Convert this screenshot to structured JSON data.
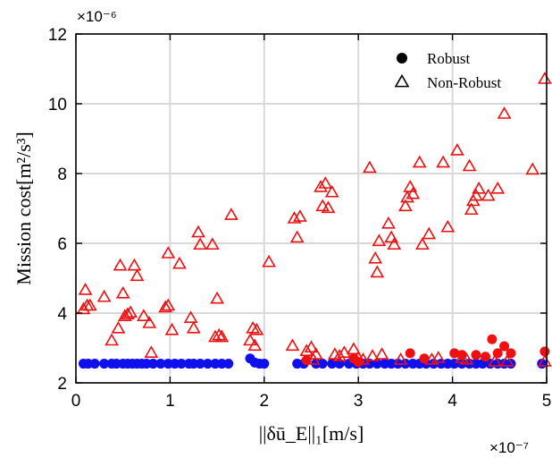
{
  "chart_data": {
    "type": "scatter",
    "xlabel": "||δū_E||₁[m/s]",
    "ylabel": "Mission cost[m²/s³]",
    "x_multiplier": "×10⁻⁷",
    "y_multiplier": "×10⁻⁶",
    "xlim": [
      0,
      5
    ],
    "ylim": [
      2,
      12
    ],
    "xticks": [
      "0",
      "1",
      "2",
      "3",
      "4",
      "5"
    ],
    "yticks": [
      "2",
      "4",
      "6",
      "8",
      "10",
      "12"
    ],
    "grid": true,
    "legend_position": "top-right",
    "series": [
      {
        "name": "Robust",
        "marker": "filled-circle",
        "points": [
          [
            0.08,
            2.55
          ],
          [
            0.13,
            2.55
          ],
          [
            0.2,
            2.55
          ],
          [
            0.3,
            2.55
          ],
          [
            0.38,
            2.55
          ],
          [
            0.43,
            2.55
          ],
          [
            0.5,
            2.55
          ],
          [
            0.55,
            2.55
          ],
          [
            0.6,
            2.55
          ],
          [
            0.65,
            2.55
          ],
          [
            0.7,
            2.55
          ],
          [
            0.75,
            2.55
          ],
          [
            0.82,
            2.55
          ],
          [
            0.9,
            2.55
          ],
          [
            0.98,
            2.55
          ],
          [
            1.05,
            2.55
          ],
          [
            1.12,
            2.55
          ],
          [
            1.2,
            2.55
          ],
          [
            1.25,
            2.55
          ],
          [
            1.32,
            2.55
          ],
          [
            1.4,
            2.55
          ],
          [
            1.48,
            2.55
          ],
          [
            1.55,
            2.55
          ],
          [
            1.62,
            2.55
          ],
          [
            1.85,
            2.7
          ],
          [
            1.9,
            2.58
          ],
          [
            1.95,
            2.55
          ],
          [
            2.0,
            2.55
          ],
          [
            2.35,
            2.55
          ],
          [
            2.42,
            2.55
          ],
          [
            2.55,
            2.55
          ],
          [
            2.62,
            2.55
          ],
          [
            2.72,
            2.55
          ],
          [
            2.8,
            2.55
          ],
          [
            2.9,
            2.55
          ],
          [
            2.98,
            2.55
          ],
          [
            3.05,
            2.55
          ],
          [
            3.12,
            2.55
          ],
          [
            3.2,
            2.55
          ],
          [
            3.28,
            2.55
          ],
          [
            3.35,
            2.55
          ],
          [
            3.42,
            2.55
          ],
          [
            3.5,
            2.55
          ],
          [
            3.58,
            2.55
          ],
          [
            3.65,
            2.55
          ],
          [
            3.72,
            2.55
          ],
          [
            3.8,
            2.55
          ],
          [
            3.88,
            2.55
          ],
          [
            3.95,
            2.55
          ],
          [
            4.02,
            2.55
          ],
          [
            4.1,
            2.55
          ],
          [
            4.18,
            2.55
          ],
          [
            4.25,
            2.55
          ],
          [
            4.32,
            2.55
          ],
          [
            4.4,
            2.55
          ],
          [
            4.48,
            2.55
          ],
          [
            4.55,
            2.55
          ],
          [
            4.62,
            2.55
          ],
          [
            4.95,
            2.55
          ]
        ],
        "highlight_points": [
          [
            2.45,
            2.65
          ],
          [
            2.95,
            2.7
          ],
          [
            3.0,
            2.6
          ],
          [
            3.55,
            2.85
          ],
          [
            3.7,
            2.7
          ],
          [
            4.02,
            2.85
          ],
          [
            4.1,
            2.8
          ],
          [
            4.25,
            2.8
          ],
          [
            4.35,
            2.75
          ],
          [
            4.42,
            3.25
          ],
          [
            4.48,
            2.85
          ],
          [
            4.55,
            3.05
          ],
          [
            4.62,
            2.85
          ],
          [
            4.98,
            2.9
          ]
        ]
      },
      {
        "name": "Non-Robust",
        "marker": "open-triangle",
        "points": [
          [
            0.08,
            4.1
          ],
          [
            0.1,
            4.65
          ],
          [
            0.12,
            4.2
          ],
          [
            0.15,
            4.2
          ],
          [
            0.3,
            4.45
          ],
          [
            0.38,
            3.2
          ],
          [
            0.45,
            3.55
          ],
          [
            0.47,
            5.35
          ],
          [
            0.5,
            4.55
          ],
          [
            0.52,
            3.9
          ],
          [
            0.55,
            3.95
          ],
          [
            0.58,
            4.0
          ],
          [
            0.62,
            5.35
          ],
          [
            0.65,
            5.05
          ],
          [
            0.72,
            3.9
          ],
          [
            0.78,
            3.7
          ],
          [
            0.8,
            2.85
          ],
          [
            0.95,
            4.15
          ],
          [
            0.98,
            4.2
          ],
          [
            0.98,
            5.7
          ],
          [
            1.02,
            3.5
          ],
          [
            1.1,
            5.4
          ],
          [
            1.22,
            3.85
          ],
          [
            1.25,
            3.55
          ],
          [
            1.3,
            6.3
          ],
          [
            1.32,
            5.95
          ],
          [
            1.45,
            5.95
          ],
          [
            1.48,
            3.3
          ],
          [
            1.5,
            4.4
          ],
          [
            1.52,
            3.35
          ],
          [
            1.55,
            3.3
          ],
          [
            1.65,
            6.8
          ],
          [
            1.85,
            3.2
          ],
          [
            1.88,
            3.55
          ],
          [
            1.92,
            3.5
          ],
          [
            1.9,
            3.05
          ],
          [
            2.05,
            5.45
          ],
          [
            2.3,
            3.05
          ],
          [
            2.32,
            6.7
          ],
          [
            2.35,
            6.15
          ],
          [
            2.38,
            6.75
          ],
          [
            2.45,
            2.9
          ],
          [
            2.5,
            3.0
          ],
          [
            2.52,
            2.65
          ],
          [
            2.55,
            2.8
          ],
          [
            2.6,
            7.6
          ],
          [
            2.62,
            7.05
          ],
          [
            2.65,
            7.7
          ],
          [
            2.68,
            7.0
          ],
          [
            2.72,
            7.45
          ],
          [
            2.75,
            2.8
          ],
          [
            2.8,
            2.75
          ],
          [
            2.85,
            2.85
          ],
          [
            2.95,
            2.95
          ],
          [
            3.0,
            2.7
          ],
          [
            3.05,
            2.65
          ],
          [
            3.12,
            8.15
          ],
          [
            3.15,
            2.75
          ],
          [
            3.18,
            5.55
          ],
          [
            3.2,
            5.15
          ],
          [
            3.22,
            6.05
          ],
          [
            3.25,
            2.8
          ],
          [
            3.32,
            6.55
          ],
          [
            3.35,
            6.15
          ],
          [
            3.38,
            5.95
          ],
          [
            3.45,
            2.65
          ],
          [
            3.5,
            7.05
          ],
          [
            3.52,
            7.3
          ],
          [
            3.55,
            7.6
          ],
          [
            3.58,
            7.4
          ],
          [
            3.65,
            8.3
          ],
          [
            3.68,
            5.95
          ],
          [
            3.75,
            6.25
          ],
          [
            3.78,
            2.65
          ],
          [
            3.85,
            2.7
          ],
          [
            3.9,
            8.3
          ],
          [
            3.95,
            6.45
          ],
          [
            4.05,
            8.65
          ],
          [
            4.1,
            2.7
          ],
          [
            4.15,
            2.65
          ],
          [
            4.2,
            6.95
          ],
          [
            4.22,
            7.2
          ],
          [
            4.18,
            8.2
          ],
          [
            4.25,
            7.35
          ],
          [
            4.28,
            7.55
          ],
          [
            4.38,
            7.35
          ],
          [
            4.45,
            2.6
          ],
          [
            4.48,
            7.55
          ],
          [
            4.55,
            9.7
          ],
          [
            4.58,
            2.6
          ],
          [
            4.85,
            8.1
          ],
          [
            4.98,
            2.6
          ],
          [
            4.98,
            10.7
          ]
        ]
      }
    ]
  },
  "colors": {
    "robust": "#1010ee",
    "robust_highlight": "#ee1010",
    "nonrobust": "#ee1010",
    "grid": "#d9d9d9",
    "axis": "#000000"
  }
}
